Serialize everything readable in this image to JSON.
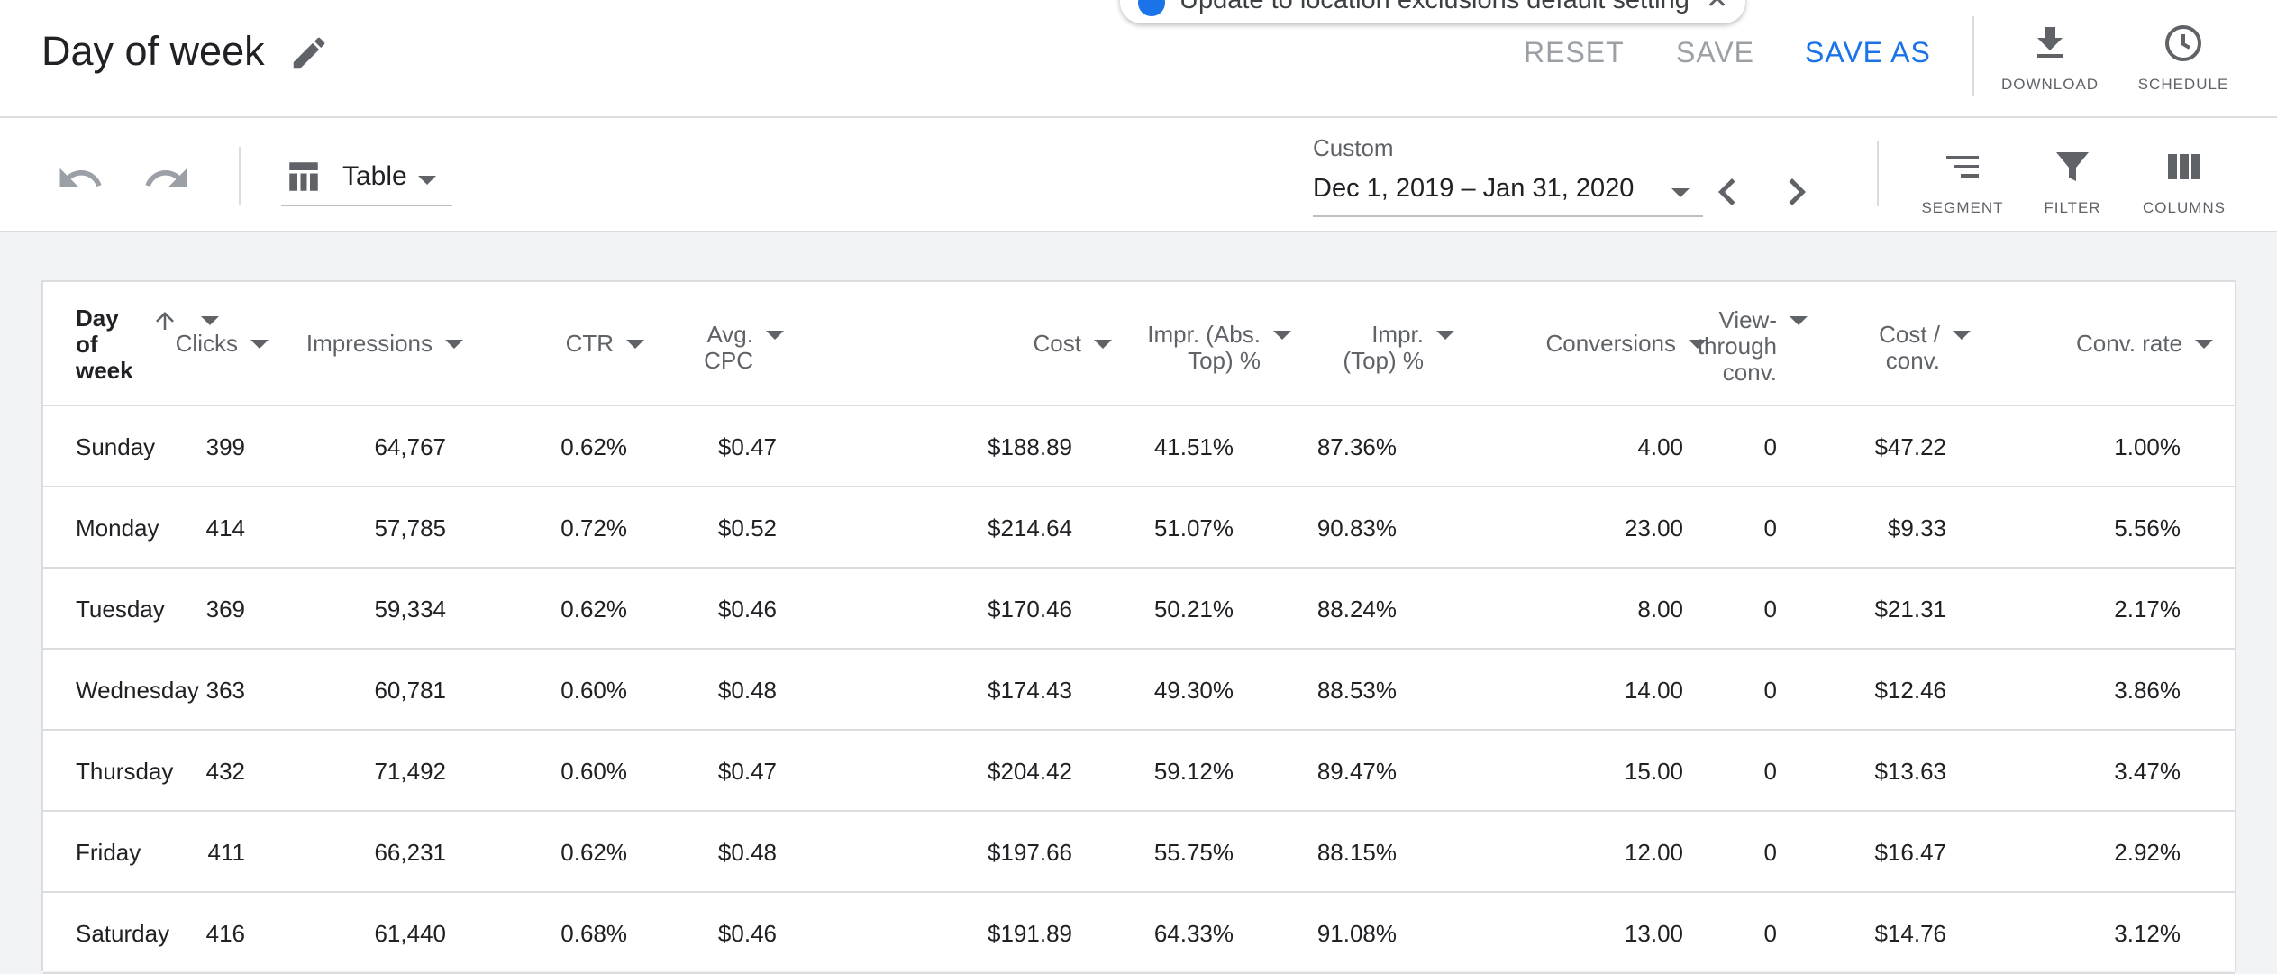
{
  "header": {
    "title": "Day of week",
    "reset_label": "RESET",
    "save_label": "SAVE",
    "save_as_label": "SAVE AS",
    "download_label": "DOWNLOAD",
    "schedule_label": "SCHEDULE"
  },
  "toast": {
    "text": "Update to location exclusions default setting"
  },
  "toolbar": {
    "view_label": "Table",
    "date_range_label": "Custom",
    "date_range_value": "Dec 1, 2019 – Jan 31, 2020",
    "segment_label": "SEGMENT",
    "filter_label": "FILTER",
    "columns_label": "COLUMNS"
  },
  "table": {
    "headers": {
      "day": [
        "Day",
        "of",
        "week"
      ],
      "clicks": "Clicks",
      "impressions": "Impressions",
      "ctr": "CTR",
      "avg_cpc": [
        "Avg.",
        "CPC"
      ],
      "cost": "Cost",
      "impr_abs_top": [
        "Impr. (Abs.",
        "Top) %"
      ],
      "impr_top": [
        "Impr.",
        "(Top) %"
      ],
      "conversions": "Conversions",
      "view_through": [
        "View-",
        "through",
        "conv."
      ],
      "cost_per_conv": [
        "Cost /",
        "conv."
      ],
      "conv_rate": "Conv. rate"
    },
    "rows": [
      [
        "Sunday",
        "399",
        "64,767",
        "0.62%",
        "$0.47",
        "$188.89",
        "41.51%",
        "87.36%",
        "4.00",
        "0",
        "$47.22",
        "1.00%"
      ],
      [
        "Monday",
        "414",
        "57,785",
        "0.72%",
        "$0.52",
        "$214.64",
        "51.07%",
        "90.83%",
        "23.00",
        "0",
        "$9.33",
        "5.56%"
      ],
      [
        "Tuesday",
        "369",
        "59,334",
        "0.62%",
        "$0.46",
        "$170.46",
        "50.21%",
        "88.24%",
        "8.00",
        "0",
        "$21.31",
        "2.17%"
      ],
      [
        "Wednesday",
        "363",
        "60,781",
        "0.60%",
        "$0.48",
        "$174.43",
        "49.30%",
        "88.53%",
        "14.00",
        "0",
        "$12.46",
        "3.86%"
      ],
      [
        "Thursday",
        "432",
        "71,492",
        "0.60%",
        "$0.47",
        "$204.42",
        "59.12%",
        "89.47%",
        "15.00",
        "0",
        "$13.63",
        "3.47%"
      ],
      [
        "Friday",
        "411",
        "66,231",
        "0.62%",
        "$0.48",
        "$197.66",
        "55.75%",
        "88.15%",
        "12.00",
        "0",
        "$16.47",
        "2.92%"
      ],
      [
        "Saturday",
        "416",
        "61,440",
        "0.68%",
        "$0.46",
        "$191.89",
        "64.33%",
        "91.08%",
        "13.00",
        "0",
        "$14.76",
        "3.12%"
      ]
    ]
  },
  "colors": {
    "accent": "#1a73e8",
    "disabled": "#9aa0a6",
    "page_bg": "#f1f3f4"
  }
}
